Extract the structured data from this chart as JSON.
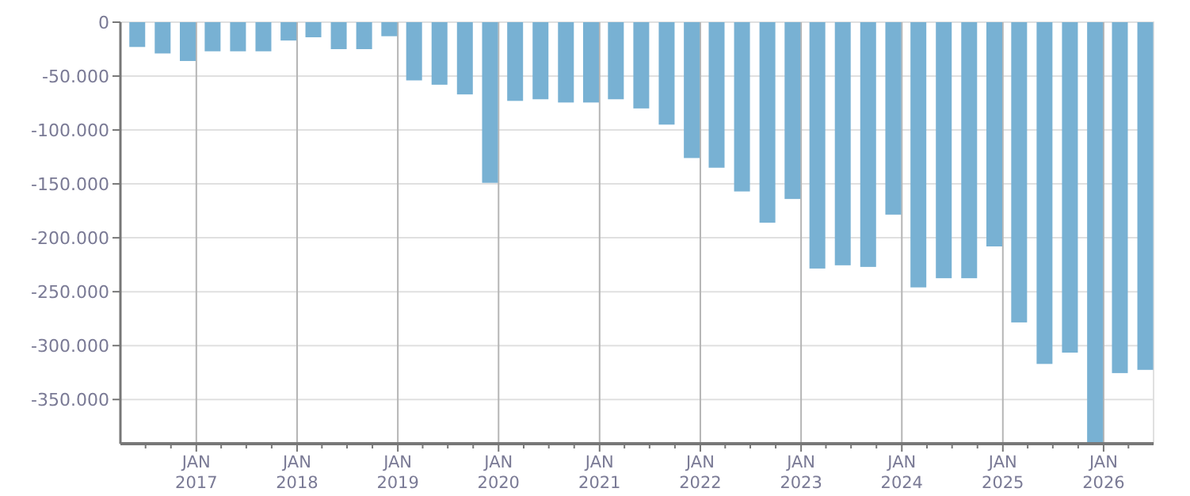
{
  "chart_data": {
    "type": "bar",
    "x": [
      "2016-06",
      "2016-09",
      "2016-12",
      "2017-03",
      "2017-06",
      "2017-09",
      "2017-12",
      "2018-03",
      "2018-06",
      "2018-09",
      "2018-12",
      "2019-03",
      "2019-06",
      "2019-09",
      "2019-12",
      "2020-03",
      "2020-06",
      "2020-09",
      "2020-12",
      "2021-03",
      "2021-06",
      "2021-09",
      "2021-12",
      "2022-03",
      "2022-06",
      "2022-09",
      "2022-12",
      "2023-03",
      "2023-06",
      "2023-09",
      "2023-12",
      "2024-03",
      "2024-06",
      "2024-09",
      "2024-12",
      "2025-03",
      "2025-06",
      "2025-09",
      "2025-12",
      "2026-03",
      "2026-06"
    ],
    "values": [
      -23000,
      -29000,
      -36000,
      -27000,
      -27000,
      -27000,
      -17000,
      -14000,
      -25000,
      -25000,
      -13000,
      -54000,
      -58000,
      -67000,
      -149000,
      -73000,
      -71500,
      -74500,
      -74500,
      -71500,
      -80000,
      -95000,
      -126000,
      -135000,
      -157000,
      -186000,
      -164000,
      -228500,
      -225500,
      -227000,
      -178500,
      -246000,
      -237500,
      -237500,
      -208000,
      -278500,
      -317000,
      -306500,
      -390000,
      -325500,
      -322500
    ],
    "color": "#78b1d3",
    "xlim": [
      "2016-04",
      "2026-07"
    ],
    "xticks": [
      {
        "value": "2016-07",
        "label": null
      },
      {
        "value": "2016-10",
        "label": null
      },
      {
        "value": "2017-01",
        "label": "JAN\n2017"
      },
      {
        "value": "2017-04",
        "label": null
      },
      {
        "value": "2017-07",
        "label": null
      },
      {
        "value": "2017-10",
        "label": null
      },
      {
        "value": "2018-01",
        "label": "JAN\n2018"
      },
      {
        "value": "2018-04",
        "label": null
      },
      {
        "value": "2018-07",
        "label": null
      },
      {
        "value": "2018-10",
        "label": null
      },
      {
        "value": "2019-01",
        "label": "JAN\n2019"
      },
      {
        "value": "2019-04",
        "label": null
      },
      {
        "value": "2019-07",
        "label": null
      },
      {
        "value": "2019-10",
        "label": null
      },
      {
        "value": "2020-01",
        "label": "JAN\n2020"
      },
      {
        "value": "2020-04",
        "label": null
      },
      {
        "value": "2020-07",
        "label": null
      },
      {
        "value": "2020-10",
        "label": null
      },
      {
        "value": "2021-01",
        "label": "JAN\n2021"
      },
      {
        "value": "2021-04",
        "label": null
      },
      {
        "value": "2021-07",
        "label": null
      },
      {
        "value": "2021-10",
        "label": null
      },
      {
        "value": "2022-01",
        "label": "JAN\n2022"
      },
      {
        "value": "2022-04",
        "label": null
      },
      {
        "value": "2022-07",
        "label": null
      },
      {
        "value": "2022-10",
        "label": null
      },
      {
        "value": "2023-01",
        "label": "JAN\n2023"
      },
      {
        "value": "2023-04",
        "label": null
      },
      {
        "value": "2023-07",
        "label": null
      },
      {
        "value": "2023-10",
        "label": null
      },
      {
        "value": "2024-01",
        "label": "JAN\n2024"
      },
      {
        "value": "2024-04",
        "label": null
      },
      {
        "value": "2024-07",
        "label": null
      },
      {
        "value": "2024-10",
        "label": null
      },
      {
        "value": "2025-01",
        "label": "JAN\n2025"
      },
      {
        "value": "2025-04",
        "label": null
      },
      {
        "value": "2025-07",
        "label": null
      },
      {
        "value": "2025-10",
        "label": null
      },
      {
        "value": "2026-01",
        "label": "JAN\n2026"
      },
      {
        "value": "2026-04",
        "label": null
      }
    ],
    "ylim": [
      -391000,
      0
    ],
    "yticks": [
      {
        "value": 0,
        "label": "0"
      },
      {
        "value": -50000,
        "label": "-50.000"
      },
      {
        "value": -100000,
        "label": "-100.000"
      },
      {
        "value": -150000,
        "label": "-150.000"
      },
      {
        "value": -200000,
        "label": "-200.000"
      },
      {
        "value": -250000,
        "label": "-250.000"
      },
      {
        "value": -300000,
        "label": "-300.000"
      },
      {
        "value": -350000,
        "label": "-350.000"
      }
    ],
    "grid": true
  }
}
